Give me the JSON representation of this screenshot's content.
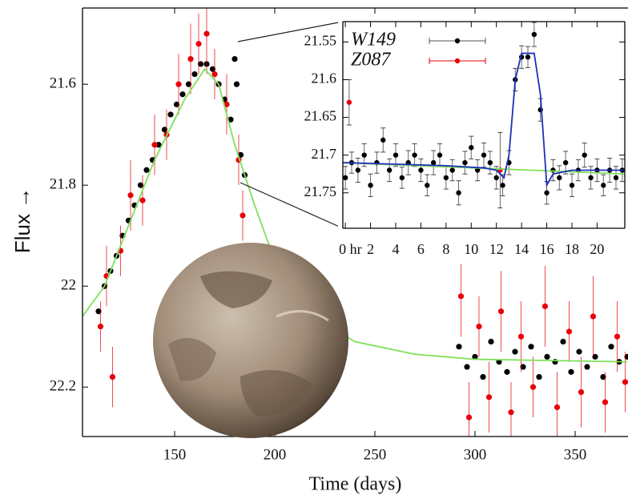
{
  "chart_data": [
    {
      "type": "scatter",
      "x_label": "Time (days)",
      "y_label": "Flux →",
      "xlim": [
        104,
        376.4
      ],
      "ylim": [
        22.298,
        21.449
      ],
      "xticks": [
        150,
        200,
        250,
        300,
        350
      ],
      "yticks": [
        21.6,
        21.8,
        22,
        22.2
      ],
      "series": [
        {
          "name": "W149",
          "color": "#000000",
          "x": [
            112,
            115,
            118,
            121,
            124,
            127,
            130,
            133,
            136,
            139,
            142,
            145,
            148,
            151,
            154,
            157,
            160,
            163,
            166,
            169,
            172,
            175,
            178,
            180,
            181,
            183,
            185,
            292,
            296,
            300,
            304,
            308,
            312,
            316,
            320,
            324,
            328,
            332,
            336,
            340,
            344,
            348,
            352,
            356,
            360,
            364,
            368,
            372,
            376
          ],
          "values": [
            22.05,
            22.0,
            21.97,
            21.94,
            21.9,
            21.87,
            21.84,
            21.8,
            21.77,
            21.75,
            21.72,
            21.69,
            21.66,
            21.64,
            21.62,
            21.6,
            21.58,
            21.56,
            21.56,
            21.57,
            21.6,
            21.63,
            21.67,
            21.55,
            21.6,
            21.74,
            21.78,
            22.12,
            22.16,
            22.14,
            22.18,
            22.11,
            22.15,
            22.17,
            22.13,
            22.16,
            22.12,
            22.18,
            22.14,
            22.15,
            22.11,
            22.17,
            22.13,
            22.16,
            22.14,
            22.18,
            22.12,
            22.15,
            22.14
          ]
        },
        {
          "name": "Z087",
          "color": "#e8000b",
          "x": [
            113,
            116,
            119,
            123,
            128,
            134,
            140,
            146,
            152,
            158,
            162,
            166,
            170,
            176,
            182,
            184,
            293,
            297,
            302,
            307,
            313,
            318,
            323,
            329,
            335,
            341,
            347,
            353,
            359,
            365,
            371,
            375
          ],
          "values": [
            22.08,
            21.98,
            22.18,
            21.93,
            21.82,
            21.83,
            21.72,
            21.7,
            21.6,
            21.55,
            21.52,
            21.5,
            21.58,
            21.64,
            21.75,
            21.86,
            22.02,
            22.26,
            22.08,
            22.22,
            22.05,
            22.25,
            22.1,
            22.2,
            22.04,
            22.24,
            22.09,
            22.21,
            22.06,
            22.23,
            22.1,
            22.19
          ],
          "errors": [
            0.05,
            0.06,
            0.06,
            0.05,
            0.07,
            0.05,
            0.06,
            0.05,
            0.06,
            0.07,
            0.06,
            0.08,
            0.05,
            0.06,
            0.05,
            0.05,
            0.08,
            0.07,
            0.06,
            0.07,
            0.08,
            0.06,
            0.07,
            0.06,
            0.08,
            0.07,
            0.06,
            0.07,
            0.08,
            0.06,
            0.07,
            0.06
          ]
        }
      ],
      "models": [
        {
          "color": "#7fe05a",
          "x": [
            104,
            115,
            125,
            140,
            155,
            165,
            172,
            180,
            185,
            190,
            200,
            215,
            240,
            270,
            300,
            376
          ],
          "values": [
            22.06,
            22.0,
            21.9,
            21.75,
            21.63,
            21.57,
            21.6,
            21.72,
            21.78,
            21.84,
            21.95,
            22.05,
            22.11,
            22.135,
            22.145,
            22.15
          ]
        }
      ]
    },
    {
      "type": "scatter",
      "xlim": [
        -0.2,
        22.2
      ],
      "ylim": [
        21.797,
        21.523
      ],
      "xticks": [
        {
          "value": 0,
          "label": "0 hr"
        },
        2,
        4,
        6,
        8,
        10,
        12,
        14,
        16,
        18,
        20
      ],
      "yticks": [
        21.55,
        21.6,
        21.65,
        21.7,
        21.75
      ],
      "legend": "top-left",
      "series": [
        {
          "name": "W149",
          "color": "#000000",
          "x": [
            0.0,
            0.5,
            1.0,
            1.5,
            2.0,
            2.5,
            3.0,
            3.5,
            4.0,
            4.5,
            5.0,
            5.5,
            6.0,
            6.5,
            7.0,
            7.5,
            8.0,
            8.5,
            9.0,
            9.5,
            10.0,
            10.5,
            11.0,
            11.5,
            12.0,
            12.5,
            13.0,
            13.5,
            14.0,
            14.5,
            15.0,
            15.5,
            16.0,
            16.5,
            17.0,
            17.5,
            18.0,
            18.5,
            19.0,
            19.5,
            20.0,
            20.5,
            21.0,
            21.5,
            22.0
          ],
          "values": [
            21.73,
            21.71,
            21.72,
            21.7,
            21.74,
            21.71,
            21.68,
            21.72,
            21.7,
            21.73,
            21.71,
            21.7,
            21.72,
            21.74,
            21.71,
            21.7,
            21.73,
            21.72,
            21.75,
            21.71,
            21.69,
            21.72,
            21.7,
            21.71,
            21.73,
            21.74,
            21.71,
            21.6,
            21.57,
            21.57,
            21.54,
            21.64,
            21.75,
            21.72,
            21.73,
            21.71,
            21.74,
            21.72,
            21.7,
            21.73,
            21.72,
            21.74,
            21.72,
            21.73,
            21.72
          ],
          "errors": [
            0.015,
            0.014,
            0.016,
            0.015,
            0.015,
            0.014,
            0.016,
            0.015,
            0.015,
            0.014,
            0.016,
            0.015,
            0.015,
            0.014,
            0.016,
            0.015,
            0.015,
            0.014,
            0.016,
            0.015,
            0.015,
            0.014,
            0.016,
            0.015,
            0.015,
            0.014,
            0.016,
            0.015,
            0.015,
            0.014,
            0.016,
            0.015,
            0.015,
            0.014,
            0.016,
            0.015,
            0.015,
            0.014,
            0.016,
            0.015,
            0.015,
            0.014,
            0.016,
            0.015,
            0.015
          ]
        },
        {
          "name": "Z087",
          "color": "#e8000b",
          "x": [
            0.3,
            12.3
          ],
          "values": [
            21.63,
            21.72
          ],
          "errors": [
            0.03,
            0.05
          ]
        }
      ],
      "models": [
        {
          "color": "#7fe05a",
          "x": [
            -0.2,
            22.2
          ],
          "values": [
            21.71,
            21.725
          ]
        },
        {
          "color": "#1f2fb8",
          "x": [
            -0.2,
            4,
            8,
            11,
            12,
            12.6,
            13,
            13.5,
            14,
            15,
            15.5,
            16,
            16.5,
            18,
            22.2
          ],
          "values": [
            21.71,
            21.712,
            21.714,
            21.717,
            21.72,
            21.73,
            21.7,
            21.6,
            21.565,
            21.565,
            21.62,
            21.74,
            21.725,
            21.72,
            21.72
          ]
        }
      ]
    }
  ]
}
